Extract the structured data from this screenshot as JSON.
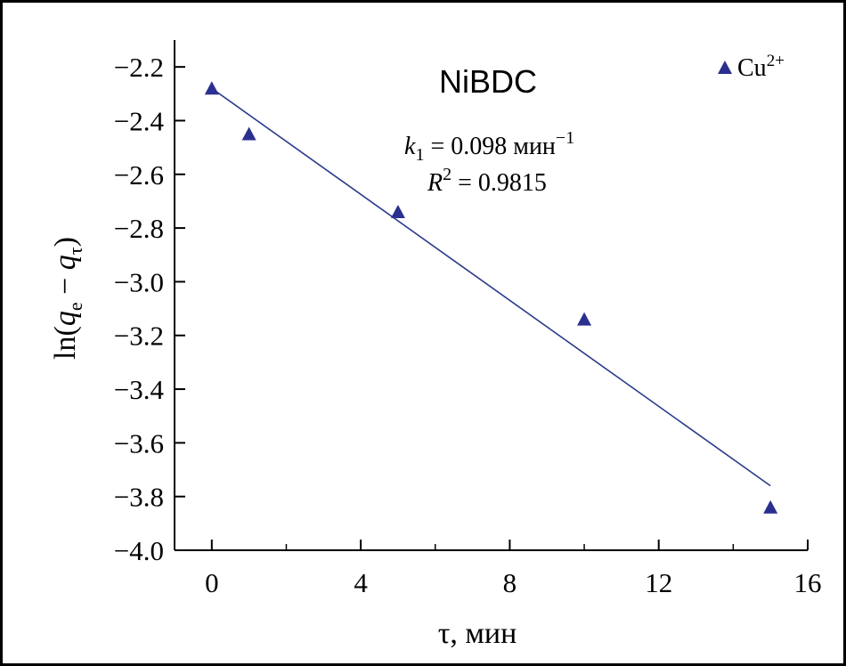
{
  "chart_data": {
    "type": "scatter",
    "title": "NiBDC",
    "xlabel": "τ, мин",
    "ylabel_parts": {
      "base": "ln(",
      "q1": "q",
      "sub1": "e",
      "minus": " − ",
      "q2": "q",
      "sub2": "τ",
      "close": ")"
    },
    "xlim": [
      -1,
      16
    ],
    "ylim": [
      -4.0,
      -2.1
    ],
    "x_ticks": [
      0,
      4,
      8,
      12,
      16
    ],
    "y_ticks": [
      -2.2,
      -2.4,
      -2.6,
      -2.8,
      -3.0,
      -3.2,
      -3.4,
      -3.6,
      -3.8,
      -4.0
    ],
    "x_tick_labels": [
      "0",
      "4",
      "8",
      "12",
      "16"
    ],
    "y_tick_labels": [
      "−2.2",
      "−2.4",
      "−2.6",
      "−2.8",
      "−3.0",
      "−3.2",
      "−3.4",
      "−3.6",
      "−3.8",
      "−4.0"
    ],
    "series": [
      {
        "name": "Cu²⁺",
        "marker": "triangle",
        "color": "#2b2f8f",
        "x": [
          0,
          1,
          5,
          10,
          15
        ],
        "y": [
          -2.28,
          -2.45,
          -2.74,
          -3.14,
          -3.84
        ]
      }
    ],
    "fit_line": {
      "x": [
        0,
        15
      ],
      "y": [
        -2.28,
        -3.76
      ],
      "color": "#2b3a8c"
    },
    "annotations": {
      "k_symbol": "k",
      "k_sub": "1",
      "k_value": " = 0.098 мин",
      "k_exp": "−1",
      "r_symbol": "R",
      "r_exp": "2",
      "r_value": " = 0.9815"
    },
    "legend": {
      "position": "top-right",
      "label": "Cu",
      "label_sup": "2+"
    }
  }
}
